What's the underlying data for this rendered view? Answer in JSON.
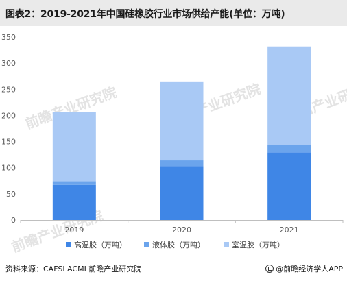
{
  "title": "图表2：2019-2021年中国硅橡胶行业市场供给产能(单位：万吨)",
  "source": "资料来源：CAFSI  ACMI  前瞻产业研究院",
  "brand": {
    "icon": "qianzhan-logo-icon",
    "label": "@前瞻经济学人APP"
  },
  "watermark_text": "前瞻产业研究院",
  "colors": {
    "high_temp": "#3f86e6",
    "liquid": "#6ba4ec",
    "room_temp": "#a9c9f5"
  },
  "chart_data": {
    "type": "bar",
    "stacked": true,
    "categories": [
      "2019",
      "2020",
      "2021"
    ],
    "series": [
      {
        "name": "高温胶（万吨）",
        "values": [
          67,
          103,
          129
        ]
      },
      {
        "name": "液体胶（万吨）",
        "values": [
          7,
          11,
          15
        ]
      },
      {
        "name": "室温胶（万吨）",
        "values": [
          133,
          151,
          188
        ]
      }
    ],
    "ylim": [
      0,
      350
    ],
    "yticks": [
      "0",
      "50",
      "100",
      "150",
      "200",
      "250",
      "300",
      "350"
    ],
    "grid": false,
    "legend": "bottom"
  }
}
